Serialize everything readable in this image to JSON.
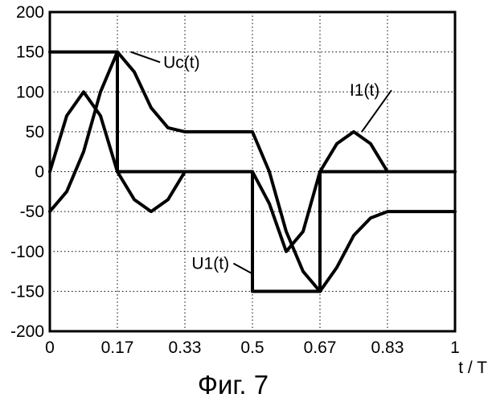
{
  "chart_data": {
    "type": "line",
    "xlabel": "t / T",
    "ylabel": "",
    "xlim": [
      0,
      1
    ],
    "ylim": [
      -200,
      200
    ],
    "x_ticks": [
      0,
      0.1667,
      0.3333,
      0.5,
      0.6667,
      0.8333,
      1
    ],
    "x_tick_labels": [
      "0",
      "0.17",
      "0.33",
      "0.5",
      "0.67",
      "0.83",
      "1"
    ],
    "y_ticks": [
      200,
      150,
      100,
      50,
      0,
      -50,
      -100,
      -150,
      -200
    ],
    "y_tick_labels": [
      "200",
      "150",
      "100",
      "50",
      "0",
      "-50",
      "-100",
      "-150",
      "-200"
    ],
    "grid": true,
    "grid_style": "dotted",
    "series": [
      {
        "name": "Uc(t)",
        "color": "#000000",
        "points": [
          [
            0,
            -50
          ],
          [
            0.0417,
            -25
          ],
          [
            0.0833,
            25
          ],
          [
            0.125,
            100
          ],
          [
            0.1667,
            150
          ],
          [
            0.2083,
            125
          ],
          [
            0.25,
            80
          ],
          [
            0.2917,
            55
          ],
          [
            0.3333,
            50
          ],
          [
            0.5,
            50
          ],
          [
            0.5417,
            0
          ],
          [
            0.5833,
            -75
          ],
          [
            0.625,
            -125
          ],
          [
            0.6667,
            -150
          ],
          [
            0.7083,
            -120
          ],
          [
            0.75,
            -80
          ],
          [
            0.7917,
            -58
          ],
          [
            0.8333,
            -50
          ],
          [
            1,
            -50
          ]
        ]
      },
      {
        "name": "I1(t)",
        "color": "#000000",
        "points": [
          [
            0,
            0
          ],
          [
            0.0417,
            70
          ],
          [
            0.0833,
            100
          ],
          [
            0.125,
            70
          ],
          [
            0.1667,
            0
          ],
          [
            0.1667,
            0
          ],
          [
            0.2083,
            -35
          ],
          [
            0.25,
            -50
          ],
          [
            0.2917,
            -35
          ],
          [
            0.3333,
            0
          ],
          [
            0.5,
            0
          ],
          [
            0.5417,
            -40
          ],
          [
            0.5833,
            -100
          ],
          [
            0.625,
            -75
          ],
          [
            0.6667,
            0
          ],
          [
            0.7083,
            35
          ],
          [
            0.75,
            50
          ],
          [
            0.7917,
            35
          ],
          [
            0.8333,
            0
          ],
          [
            1,
            0
          ]
        ]
      },
      {
        "name": "U1(t)",
        "color": "#000000",
        "points": [
          [
            0,
            150
          ],
          [
            0.1667,
            150
          ],
          [
            0.1667,
            0
          ],
          [
            0.5,
            0
          ],
          [
            0.5,
            -150
          ],
          [
            0.6667,
            -150
          ],
          [
            0.6667,
            0
          ],
          [
            1,
            0
          ]
        ]
      }
    ],
    "annotations": [
      {
        "text": "Uc(t)",
        "x": 0.2,
        "y": 150,
        "text_x": 0.28,
        "text_y": 130
      },
      {
        "text": "I1(t)",
        "x": 0.77,
        "y": 50,
        "text_x": 0.74,
        "text_y": 95
      },
      {
        "text": "U1(t)",
        "x": 0.5,
        "y": -128,
        "text_x": 0.35,
        "text_y": -122
      }
    ]
  },
  "caption": "Фиг. 7"
}
